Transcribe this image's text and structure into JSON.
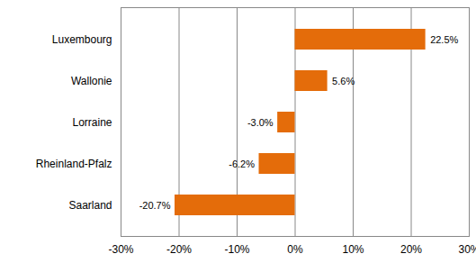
{
  "chart_data": {
    "type": "bar",
    "orientation": "horizontal",
    "categories": [
      "Luxembourg",
      "Wallonie",
      "Lorraine",
      "Rheinland-Pfalz",
      "Saarland"
    ],
    "values": [
      22.5,
      5.6,
      -3.0,
      -6.2,
      -20.7
    ],
    "value_labels": [
      "22.5%",
      "5.6%",
      "-3.0%",
      "-6.2%",
      "-20.7%"
    ],
    "color": "#e46c0a",
    "xlim": [
      -30,
      30
    ],
    "xticks": [
      {
        "value": -30,
        "label": "-30%"
      },
      {
        "value": -20,
        "label": "-20%"
      },
      {
        "value": -10,
        "label": "-10%"
      },
      {
        "value": 0,
        "label": "0%"
      },
      {
        "value": 10,
        "label": "10%"
      },
      {
        "value": 20,
        "label": "20%"
      },
      {
        "value": 30,
        "label": "30%"
      }
    ],
    "grid": true,
    "data_labels": true
  }
}
